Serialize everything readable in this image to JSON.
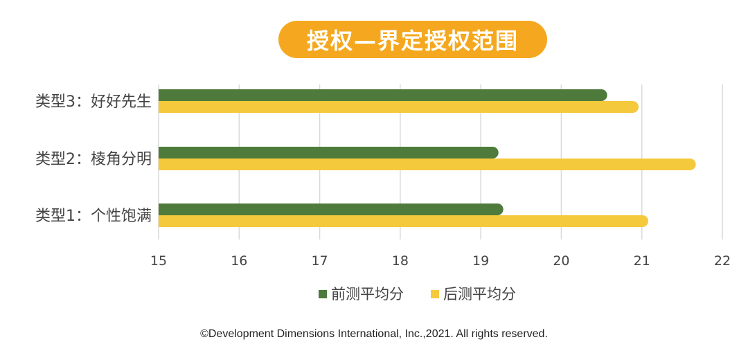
{
  "chart_data": {
    "type": "bar",
    "orientation": "horizontal",
    "title": "授权—界定授权范围",
    "categories": [
      "类型1：个性饱满",
      "类型2：棱角分明",
      "类型3：好好先生"
    ],
    "series": [
      {
        "name": "前测平均分",
        "color": "#4e7a3b",
        "values": [
          19.28,
          19.22,
          20.57
        ]
      },
      {
        "name": "后测平均分",
        "color": "#f5c93c",
        "values": [
          21.08,
          21.67,
          20.96
        ]
      }
    ],
    "xlim": [
      15,
      22
    ],
    "xticks": [
      15,
      16,
      17,
      18,
      19,
      20,
      21,
      22
    ],
    "grid": true,
    "legend_position": "bottom"
  },
  "footer": "©Development Dimensions International, Inc.,2021. All rights reserved."
}
